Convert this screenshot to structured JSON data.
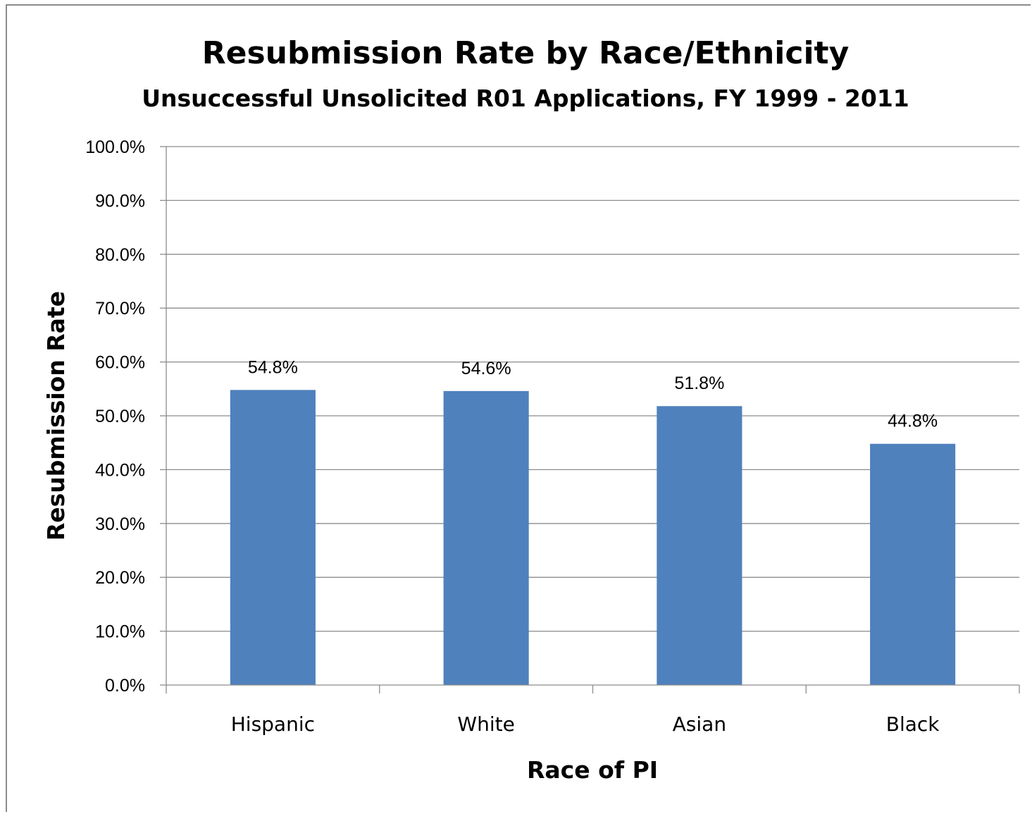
{
  "chart_data": {
    "type": "bar",
    "title": "Resubmission Rate by Race/Ethnicity",
    "subtitle": "Unsuccessful Unsolicited R01  Applications, FY 1999 - 2011",
    "xlabel": "Race of PI",
    "ylabel": "Resubmission Rate",
    "categories": [
      "Hispanic",
      "White",
      "Asian",
      "Black"
    ],
    "values": [
      54.8,
      54.6,
      51.8,
      44.8
    ],
    "data_labels": [
      "54.8%",
      "54.6%",
      "51.8%",
      "44.8%"
    ],
    "ylim": [
      0,
      100
    ],
    "yticks": [
      0,
      10,
      20,
      30,
      40,
      50,
      60,
      70,
      80,
      90,
      100
    ],
    "ytick_labels": [
      "0.0%",
      "10.0%",
      "20.0%",
      "30.0%",
      "40.0%",
      "50.0%",
      "60.0%",
      "70.0%",
      "80.0%",
      "90.0%",
      "100.0%"
    ],
    "grid": true,
    "legend": "none",
    "bar_color": "#4f81bd"
  }
}
